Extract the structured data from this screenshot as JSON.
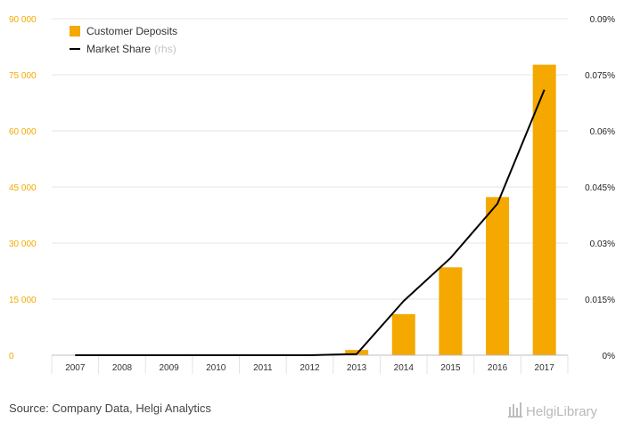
{
  "chart_data": {
    "type": "bar+line",
    "categories": [
      "2007",
      "2008",
      "2009",
      "2010",
      "2011",
      "2012",
      "2013",
      "2014",
      "2015",
      "2016",
      "2017"
    ],
    "series": [
      {
        "name": "Customer Deposits",
        "type": "bar",
        "axis": "left",
        "color": "#f5a800",
        "values": [
          0,
          0,
          0,
          0,
          0,
          0,
          1400,
          11000,
          23500,
          42300,
          77700
        ]
      },
      {
        "name": "Market Share",
        "type": "line",
        "axis": "right",
        "color": "#000000",
        "values": [
          0,
          0,
          0,
          0,
          0,
          0,
          0.0003,
          0.0145,
          0.026,
          0.0405,
          0.071
        ]
      }
    ],
    "y_left": {
      "min": 0,
      "max": 90000,
      "ticks": [
        0,
        15000,
        30000,
        45000,
        60000,
        75000,
        90000
      ],
      "tick_labels": [
        "0",
        "15 000",
        "30 000",
        "45 000",
        "60 000",
        "75 000",
        "90 000"
      ]
    },
    "y_right": {
      "min": 0,
      "max": 0.09,
      "tick_labels": [
        "0%",
        "0.015%",
        "0.03%",
        "0.045%",
        "0.06%",
        "0.075%",
        "0.09%"
      ]
    },
    "grid": true,
    "legend_position": "top-left",
    "legend": [
      {
        "label": "Customer Deposits",
        "suffix": ""
      },
      {
        "label": "Market Share",
        "suffix": "(rhs)"
      }
    ]
  },
  "footer": {
    "source": "Source: Company Data, Helgi Analytics",
    "brand": "HelgiLibrary"
  }
}
